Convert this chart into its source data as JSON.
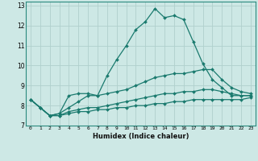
{
  "background_color": "#cde8e5",
  "grid_color": "#b0d0cc",
  "line_color": "#1a7a6e",
  "marker_style": "D",
  "marker_size": 2.0,
  "line_width": 0.9,
  "xlabel": "Humidex (Indice chaleur)",
  "xlim": [
    -0.5,
    23.5
  ],
  "ylim": [
    7.0,
    13.2
  ],
  "xtick_labels": [
    "0",
    "1",
    "2",
    "3",
    "4",
    "5",
    "6",
    "7",
    "8",
    "9",
    "10",
    "11",
    "12",
    "13",
    "14",
    "15",
    "16",
    "17",
    "18",
    "19",
    "20",
    "21",
    "22",
    "23"
  ],
  "ytick_values": [
    7,
    8,
    9,
    10,
    11,
    12,
    13
  ],
  "series": [
    {
      "x": [
        0,
        1,
        2,
        3,
        4,
        5,
        6,
        7,
        8,
        9,
        10,
        11,
        12,
        13,
        14,
        15,
        16,
        17,
        18,
        19,
        20,
        21,
        22,
        23
      ],
      "y": [
        8.3,
        7.9,
        7.5,
        7.6,
        8.5,
        8.6,
        8.6,
        8.5,
        9.5,
        10.3,
        11.0,
        11.8,
        12.2,
        12.85,
        12.4,
        12.5,
        12.3,
        11.2,
        10.1,
        9.3,
        8.9,
        8.5,
        8.5,
        8.5
      ]
    },
    {
      "x": [
        0,
        1,
        2,
        3,
        4,
        5,
        6,
        7,
        8,
        9,
        10,
        11,
        12,
        13,
        14,
        15,
        16,
        17,
        18,
        19,
        20,
        21,
        22,
        23
      ],
      "y": [
        8.3,
        7.9,
        7.5,
        7.6,
        7.9,
        8.2,
        8.5,
        8.5,
        8.6,
        8.7,
        8.8,
        9.0,
        9.2,
        9.4,
        9.5,
        9.6,
        9.6,
        9.7,
        9.8,
        9.8,
        9.3,
        8.9,
        8.7,
        8.6
      ]
    },
    {
      "x": [
        0,
        1,
        2,
        3,
        4,
        5,
        6,
        7,
        8,
        9,
        10,
        11,
        12,
        13,
        14,
        15,
        16,
        17,
        18,
        19,
        20,
        21,
        22,
        23
      ],
      "y": [
        8.3,
        7.9,
        7.5,
        7.5,
        7.7,
        7.8,
        7.9,
        7.9,
        8.0,
        8.1,
        8.2,
        8.3,
        8.4,
        8.5,
        8.6,
        8.6,
        8.7,
        8.7,
        8.8,
        8.8,
        8.7,
        8.6,
        8.5,
        8.5
      ]
    },
    {
      "x": [
        0,
        1,
        2,
        3,
        4,
        5,
        6,
        7,
        8,
        9,
        10,
        11,
        12,
        13,
        14,
        15,
        16,
        17,
        18,
        19,
        20,
        21,
        22,
        23
      ],
      "y": [
        8.3,
        7.9,
        7.5,
        7.5,
        7.6,
        7.7,
        7.7,
        7.8,
        7.8,
        7.9,
        7.9,
        8.0,
        8.0,
        8.1,
        8.1,
        8.2,
        8.2,
        8.3,
        8.3,
        8.3,
        8.3,
        8.3,
        8.3,
        8.4
      ]
    }
  ]
}
